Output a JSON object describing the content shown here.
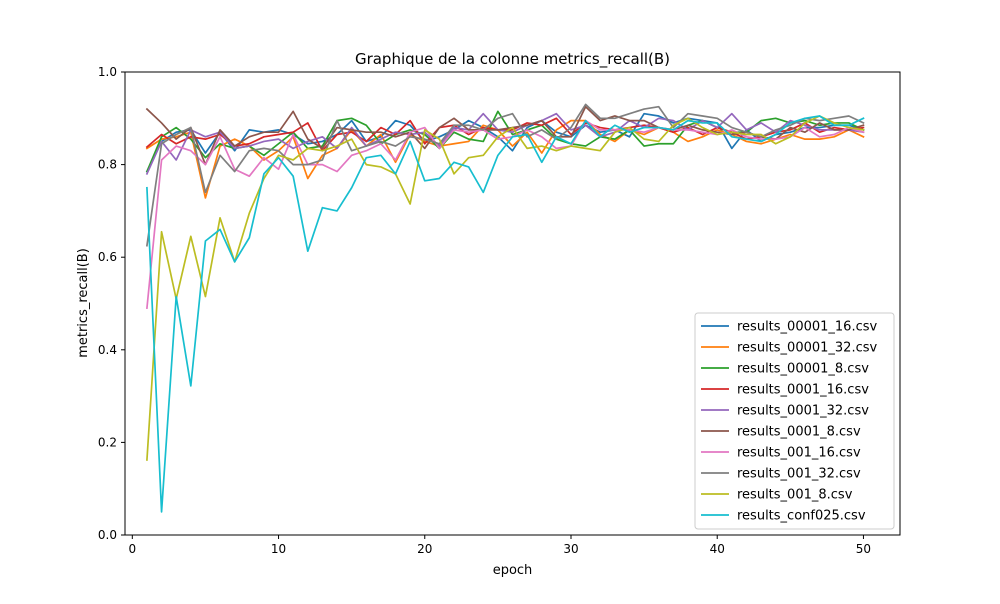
{
  "chart_data": {
    "type": "line",
    "title": "Graphique de la colonne metrics_recall(B)",
    "xlabel": "epoch",
    "ylabel": "metrics_recall(B)",
    "xlim": [
      -0.5,
      52.5
    ],
    "ylim": [
      0.0,
      1.0
    ],
    "xticks": [
      0,
      10,
      20,
      30,
      40,
      50
    ],
    "yticks": [
      0.0,
      0.2,
      0.4,
      0.6,
      0.8,
      1.0
    ],
    "xtick_labels": [
      "0",
      "10",
      "20",
      "30",
      "40",
      "50"
    ],
    "ytick_labels": [
      "0.0",
      "0.2",
      "0.4",
      "0.6",
      "0.8",
      "1.0"
    ],
    "grid": false,
    "legend_position": "lower right",
    "x": [
      1,
      2,
      3,
      4,
      5,
      6,
      7,
      8,
      9,
      10,
      11,
      12,
      13,
      14,
      15,
      16,
      17,
      18,
      19,
      20,
      21,
      22,
      23,
      24,
      25,
      26,
      27,
      28,
      29,
      30,
      31,
      32,
      33,
      34,
      35,
      36,
      37,
      38,
      39,
      40,
      41,
      42,
      43,
      44,
      45,
      46,
      47,
      48,
      49,
      50
    ],
    "series": [
      {
        "name": "results_00001_16.csv",
        "color": "#1f77b4",
        "values": [
          0.785,
          0.85,
          0.87,
          0.875,
          0.825,
          0.87,
          0.83,
          0.875,
          0.87,
          0.875,
          0.865,
          0.845,
          0.85,
          0.865,
          0.895,
          0.85,
          0.86,
          0.895,
          0.885,
          0.85,
          0.86,
          0.875,
          0.895,
          0.88,
          0.86,
          0.83,
          0.88,
          0.895,
          0.87,
          0.86,
          0.885,
          0.87,
          0.875,
          0.86,
          0.91,
          0.905,
          0.89,
          0.9,
          0.895,
          0.89,
          0.835,
          0.875,
          0.85,
          0.865,
          0.87,
          0.88,
          0.88,
          0.885,
          0.885,
          0.875
        ]
      },
      {
        "name": "results_00001_32.csv",
        "color": "#ff7f0e",
        "values": [
          0.835,
          0.855,
          0.86,
          0.87,
          0.728,
          0.84,
          0.855,
          0.84,
          0.81,
          0.83,
          0.86,
          0.77,
          0.82,
          0.835,
          0.875,
          0.84,
          0.865,
          0.805,
          0.865,
          0.85,
          0.84,
          0.845,
          0.85,
          0.885,
          0.875,
          0.84,
          0.87,
          0.825,
          0.875,
          0.895,
          0.895,
          0.865,
          0.85,
          0.875,
          0.865,
          0.88,
          0.87,
          0.85,
          0.86,
          0.875,
          0.865,
          0.85,
          0.845,
          0.855,
          0.865,
          0.855,
          0.855,
          0.86,
          0.875,
          0.86
        ]
      },
      {
        "name": "results_00001_8.csv",
        "color": "#2ca02c",
        "values": [
          0.785,
          0.86,
          0.88,
          0.855,
          0.815,
          0.845,
          0.835,
          0.84,
          0.82,
          0.845,
          0.87,
          0.835,
          0.84,
          0.895,
          0.9,
          0.885,
          0.845,
          0.865,
          0.875,
          0.865,
          0.835,
          0.87,
          0.855,
          0.85,
          0.915,
          0.865,
          0.875,
          0.885,
          0.855,
          0.845,
          0.84,
          0.86,
          0.855,
          0.875,
          0.84,
          0.845,
          0.845,
          0.885,
          0.895,
          0.88,
          0.87,
          0.87,
          0.895,
          0.9,
          0.89,
          0.895,
          0.885,
          0.89,
          0.89,
          0.875
        ]
      },
      {
        "name": "results_0001_16.csv",
        "color": "#d62728",
        "values": [
          0.838,
          0.865,
          0.845,
          0.86,
          0.855,
          0.865,
          0.84,
          0.845,
          0.86,
          0.865,
          0.87,
          0.89,
          0.83,
          0.865,
          0.87,
          0.85,
          0.88,
          0.865,
          0.895,
          0.845,
          0.88,
          0.885,
          0.865,
          0.88,
          0.875,
          0.875,
          0.89,
          0.885,
          0.9,
          0.865,
          0.89,
          0.88,
          0.875,
          0.88,
          0.885,
          0.88,
          0.87,
          0.88,
          0.865,
          0.88,
          0.87,
          0.855,
          0.86,
          0.87,
          0.875,
          0.89,
          0.87,
          0.88,
          0.875,
          0.88
        ]
      },
      {
        "name": "results_0001_32.csv",
        "color": "#9467bd",
        "values": [
          0.78,
          0.85,
          0.81,
          0.875,
          0.86,
          0.87,
          0.835,
          0.84,
          0.85,
          0.855,
          0.835,
          0.85,
          0.86,
          0.835,
          0.88,
          0.84,
          0.855,
          0.87,
          0.865,
          0.87,
          0.84,
          0.88,
          0.875,
          0.91,
          0.875,
          0.87,
          0.885,
          0.895,
          0.91,
          0.875,
          0.885,
          0.86,
          0.87,
          0.895,
          0.88,
          0.9,
          0.895,
          0.875,
          0.895,
          0.88,
          0.91,
          0.875,
          0.89,
          0.87,
          0.895,
          0.885,
          0.875,
          0.875,
          0.875,
          0.87
        ]
      },
      {
        "name": "results_0001_8.csv",
        "color": "#8c564b",
        "values": [
          0.92,
          0.89,
          0.855,
          0.88,
          0.8,
          0.875,
          0.84,
          0.86,
          0.87,
          0.87,
          0.915,
          0.855,
          0.835,
          0.88,
          0.875,
          0.87,
          0.87,
          0.86,
          0.87,
          0.835,
          0.88,
          0.9,
          0.875,
          0.875,
          0.875,
          0.88,
          0.885,
          0.895,
          0.86,
          0.86,
          0.925,
          0.895,
          0.905,
          0.895,
          0.895,
          0.88,
          0.875,
          0.885,
          0.875,
          0.87,
          0.865,
          0.87,
          0.86,
          0.855,
          0.88,
          0.87,
          0.89,
          0.875,
          0.875,
          0.885
        ]
      },
      {
        "name": "results_001_16.csv",
        "color": "#e377c2",
        "values": [
          0.49,
          0.81,
          0.84,
          0.83,
          0.8,
          0.86,
          0.79,
          0.775,
          0.815,
          0.79,
          0.865,
          0.8,
          0.8,
          0.785,
          0.82,
          0.83,
          0.845,
          0.81,
          0.87,
          0.88,
          0.835,
          0.875,
          0.87,
          0.875,
          0.855,
          0.86,
          0.875,
          0.86,
          0.835,
          0.84,
          0.895,
          0.875,
          0.875,
          0.875,
          0.87,
          0.88,
          0.875,
          0.875,
          0.87,
          0.865,
          0.875,
          0.86,
          0.855,
          0.855,
          0.86,
          0.88,
          0.86,
          0.865,
          0.88,
          0.87
        ]
      },
      {
        "name": "results_001_32.csv",
        "color": "#7f7f7f",
        "values": [
          0.625,
          0.845,
          0.865,
          0.88,
          0.74,
          0.82,
          0.785,
          0.83,
          0.835,
          0.83,
          0.8,
          0.8,
          0.81,
          0.895,
          0.83,
          0.84,
          0.85,
          0.84,
          0.86,
          0.855,
          0.845,
          0.885,
          0.885,
          0.875,
          0.9,
          0.91,
          0.86,
          0.875,
          0.855,
          0.88,
          0.93,
          0.9,
          0.9,
          0.91,
          0.92,
          0.925,
          0.88,
          0.91,
          0.905,
          0.9,
          0.88,
          0.87,
          0.86,
          0.875,
          0.885,
          0.9,
          0.895,
          0.9,
          0.905,
          0.89
        ]
      },
      {
        "name": "results_001_8.csv",
        "color": "#bcbd22",
        "values": [
          0.162,
          0.655,
          0.51,
          0.645,
          0.515,
          0.685,
          0.59,
          0.695,
          0.77,
          0.82,
          0.81,
          0.835,
          0.83,
          0.84,
          0.855,
          0.8,
          0.795,
          0.78,
          0.715,
          0.875,
          0.855,
          0.78,
          0.815,
          0.82,
          0.86,
          0.88,
          0.835,
          0.84,
          0.83,
          0.84,
          0.835,
          0.83,
          0.87,
          0.88,
          0.855,
          0.85,
          0.885,
          0.9,
          0.88,
          0.865,
          0.87,
          0.865,
          0.865,
          0.845,
          0.86,
          0.89,
          0.905,
          0.89,
          0.88,
          0.875
        ]
      },
      {
        "name": "results_conf025.csv",
        "color": "#17becf",
        "values": [
          0.75,
          0.05,
          0.515,
          0.322,
          0.635,
          0.66,
          0.59,
          0.642,
          0.78,
          0.815,
          0.775,
          0.613,
          0.707,
          0.7,
          0.75,
          0.815,
          0.82,
          0.78,
          0.85,
          0.765,
          0.77,
          0.805,
          0.795,
          0.74,
          0.82,
          0.86,
          0.865,
          0.805,
          0.86,
          0.845,
          0.895,
          0.86,
          0.885,
          0.87,
          0.88,
          0.88,
          0.875,
          0.895,
          0.89,
          0.89,
          0.86,
          0.855,
          0.85,
          0.865,
          0.89,
          0.9,
          0.905,
          0.885,
          0.885,
          0.9
        ]
      }
    ]
  }
}
